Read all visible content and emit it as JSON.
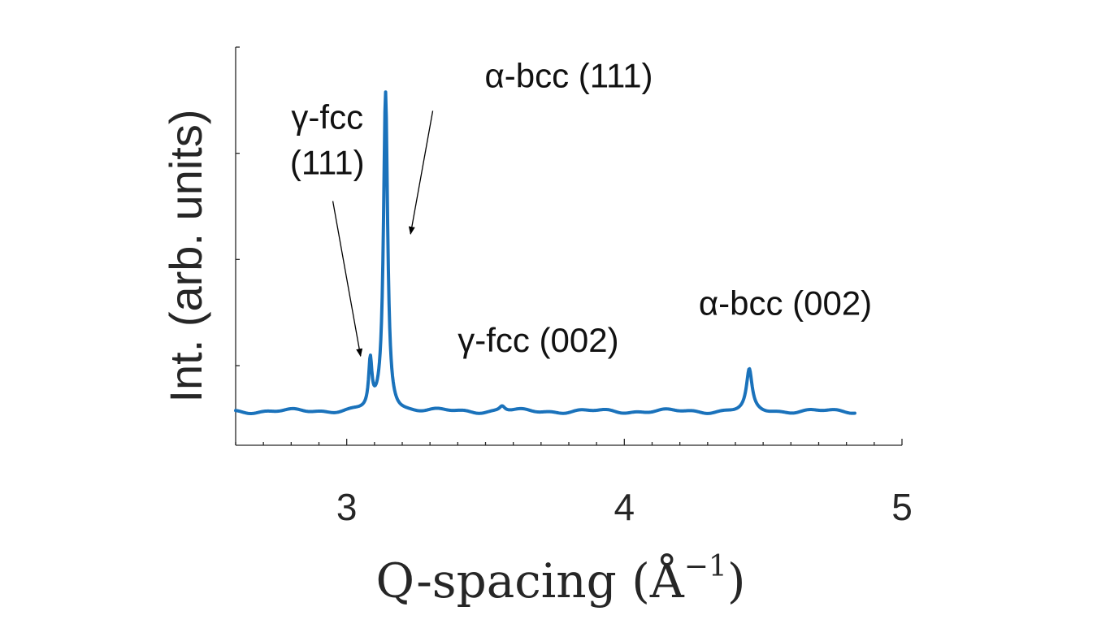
{
  "chart_data": {
    "type": "line",
    "xlabel": "Q-spacing (Å",
    "xlabel_superscript": "−1",
    "xlabel_close": ")",
    "ylabel": "Int. (arb. units)",
    "xlim": [
      2.6,
      5.0
    ],
    "ylim": [
      0,
      3.75
    ],
    "x_ticks": [
      3,
      4,
      5
    ],
    "x_tick_labels": [
      "3",
      "4",
      "5"
    ],
    "x_minor_step": 0.1,
    "y_ticks": [
      0.75,
      1.75,
      2.75,
      3.75
    ],
    "y_tick_labels": [
      "",
      "",
      "",
      ""
    ],
    "grid": false,
    "color": "#1a72bb",
    "series": [
      {
        "baseline": 0.32,
        "x_range": [
          2.6,
          4.83
        ],
        "peaks": [
          {
            "center": 3.085,
            "height": 0.44,
            "width": 0.007
          },
          {
            "center": 3.14,
            "height": 3.0,
            "width": 0.009
          },
          {
            "center": 3.56,
            "height": 0.05,
            "width": 0.012
          },
          {
            "center": 4.45,
            "height": 0.38,
            "width": 0.012
          }
        ]
      }
    ],
    "annotations": [
      {
        "lines": [
          "γ-fcc",
          "(111)"
        ],
        "x": 2.93,
        "y": 2.98,
        "arrow_from": [
          2.95,
          2.3
        ],
        "arrow_to": [
          3.05,
          0.84
        ]
      },
      {
        "lines": [
          "α-bcc (111)"
        ],
        "x": 3.8,
        "y": 3.37,
        "arrow_from": [
          3.31,
          3.15
        ],
        "arrow_to": [
          3.23,
          1.99
        ]
      },
      {
        "lines": [
          "γ-fcc (002)"
        ],
        "x": 3.69,
        "y": 0.88
      },
      {
        "lines": [
          "α-bcc (002)"
        ],
        "x": 4.58,
        "y": 1.23
      }
    ]
  }
}
